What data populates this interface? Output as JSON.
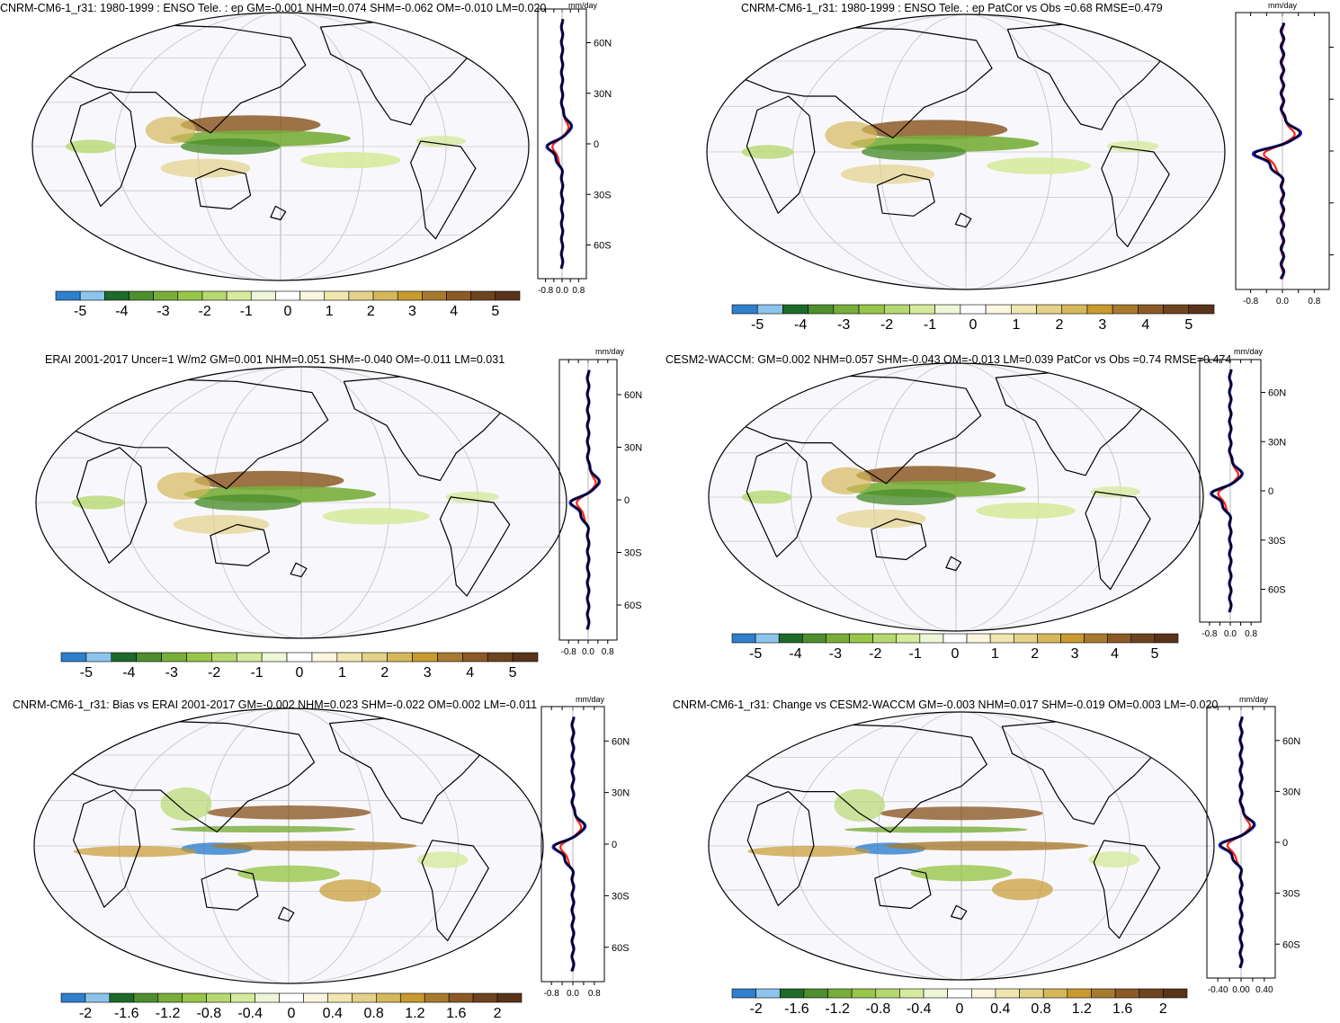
{
  "units": "mm/day",
  "profile_y_ticks": [
    "60N",
    "30N",
    "0",
    "30S",
    "60S"
  ],
  "colorbars": {
    "full": {
      "labels": [
        "-5",
        "-4",
        "-3",
        "-2",
        "-1",
        "0",
        "1",
        "2",
        "3",
        "4",
        "5"
      ],
      "colors": [
        "#2f7fcc",
        "#8cc4ee",
        "#1e6a2a",
        "#4e8e2e",
        "#78ad3a",
        "#98c64a",
        "#b6d870",
        "#d6ea9e",
        "#eef6d8",
        "#ffffff",
        "#fbf6e0",
        "#f1e6b0",
        "#e4d18a",
        "#d6b85c",
        "#c89a30",
        "#a87a30",
        "#8c5a26",
        "#6e4420",
        "#5a341a"
      ]
    },
    "diff": {
      "labels": [
        "-2",
        "-1.6",
        "-1.2",
        "-0.8",
        "-0.4",
        "0",
        "0.4",
        "0.8",
        "1.2",
        "1.6",
        "2"
      ],
      "colors": [
        "#2f7fcc",
        "#8cc4ee",
        "#1e6a2a",
        "#4e8e2e",
        "#78ad3a",
        "#98c64a",
        "#b6d870",
        "#d6ea9e",
        "#eef6d8",
        "#ffffff",
        "#fbf6e0",
        "#f1e6b0",
        "#e4d18a",
        "#d6b85c",
        "#c89a30",
        "#a87a30",
        "#8c5a26",
        "#6e4420",
        "#5a341a"
      ]
    }
  },
  "panels": [
    {
      "id": "p1",
      "title": "CNRM-CM6-1_r31: 1980-1999 : ENSO Tele. : ep GM=-0.001 NHM=0.074 SHM=-0.062 OM=-0.010 LM=0.020",
      "profile_x_ticks": [
        "-0.8",
        "0.0",
        "0.8"
      ],
      "show_y_labels": true,
      "colorbar": "full"
    },
    {
      "id": "p2",
      "title": "CNRM-CM6-1_r31: 1980-1999 : ENSO Tele. : ep PatCor vs Obs =0.68 RMSE=0.479",
      "profile_x_ticks": [
        "-0.8",
        "0.0",
        "0.8"
      ],
      "show_y_labels": false,
      "colorbar": "full"
    },
    {
      "id": "p3",
      "title": "ERAI 2001-2017 Uncer=1 W/m2 GM=0.001 NHM=0.051 SHM=-0.040 OM=-0.011 LM=0.031",
      "profile_x_ticks": [
        "-0.8",
        "0.0",
        "0.8"
      ],
      "show_y_labels": true,
      "colorbar": "full"
    },
    {
      "id": "p4",
      "title": "CESM2-WACCM: GM=0.002 NHM=0.057 SHM=-0.043 OM=-0.013 LM=0.039 PatCor vs Obs =0.74 RMSE=0.474",
      "profile_x_ticks": [
        "-0.8",
        "0.0",
        "0.8"
      ],
      "show_y_labels": true,
      "colorbar": "full"
    },
    {
      "id": "p5",
      "title": "CNRM-CM6-1_r31: Bias vs ERAI 2001-2017 GM=-0.002 NHM=0.023 SHM=-0.022 OM=0.002 LM=-0.011",
      "profile_x_ticks": [
        "-0.8",
        "0.0",
        "0.8"
      ],
      "show_y_labels": true,
      "colorbar": "diff"
    },
    {
      "id": "p6",
      "title": "CNRM-CM6-1_r31: Change vs CESM2-WACCM GM=-0.003 NHM=0.017 SHM=-0.019 OM=0.003 LM=-0.020",
      "profile_x_ticks": [
        "-0.40",
        "0.00",
        "0.40"
      ],
      "show_y_labels": true,
      "colorbar": "diff"
    }
  ]
}
